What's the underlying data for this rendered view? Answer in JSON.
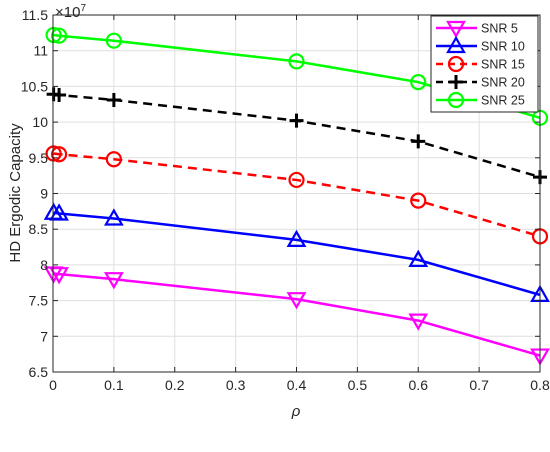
{
  "chart_data": {
    "type": "line",
    "xlabel": "ρ",
    "ylabel": "HD Ergodic Capacity",
    "y_exponent_label": "×10",
    "y_exponent_power": "7",
    "xlim": [
      0,
      0.8
    ],
    "ylim": [
      6.5,
      11.5
    ],
    "x_ticks": [
      "0",
      "0.1",
      "0.2",
      "0.3",
      "0.4",
      "0.5",
      "0.6",
      "0.7",
      "0.8"
    ],
    "y_ticks": [
      "6.5",
      "7",
      "7.5",
      "8",
      "8.5",
      "9",
      "9.5",
      "10",
      "10.5",
      "11",
      "11.5"
    ],
    "grid": true,
    "legend_position": "top-right",
    "x": [
      0.001,
      0.01,
      0.1,
      0.4,
      0.6,
      0.8
    ],
    "series": [
      {
        "name": "SNR 5",
        "color": "#ff00ff",
        "dash": "solid",
        "marker": "triangle-down",
        "values": [
          7.88,
          7.87,
          7.8,
          7.52,
          7.22,
          6.73
        ]
      },
      {
        "name": "SNR 10",
        "color": "#0000ff",
        "dash": "solid",
        "marker": "triangle-up",
        "values": [
          8.73,
          8.72,
          8.65,
          8.35,
          8.07,
          7.58
        ]
      },
      {
        "name": "SNR 15",
        "color": "#ff0000",
        "dash": "dashed",
        "marker": "circle",
        "values": [
          9.56,
          9.55,
          9.48,
          9.19,
          8.9,
          8.4
        ]
      },
      {
        "name": "SNR 20",
        "color": "#000000",
        "dash": "dashed",
        "marker": "plus",
        "values": [
          10.39,
          10.38,
          10.31,
          10.02,
          9.73,
          9.23
        ]
      },
      {
        "name": "SNR 25",
        "color": "#00ff00",
        "dash": "solid",
        "marker": "circle",
        "values": [
          11.22,
          11.21,
          11.14,
          10.85,
          10.56,
          10.06
        ]
      }
    ]
  }
}
